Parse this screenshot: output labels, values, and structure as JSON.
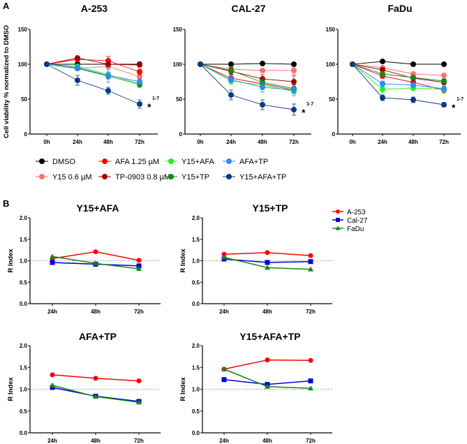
{
  "panel_labels": {
    "a": "A",
    "b": "B"
  },
  "colors": {
    "DMSO": "#000000",
    "AFA 1.25 µM": "#ff0000",
    "Y15+AFA": "#22ee22",
    "AFA+TP": "#2a8cff",
    "Y15 0.6 µM": "#ff7070",
    "TP-0903 0.8 µM": "#a00000",
    "Y15+TP": "#138a13",
    "Y15+AFA+TP": "#0c3a80",
    "A-253": "#ff0000",
    "Cal-27": "#0000dd",
    "FaDu": "#138a13"
  },
  "legend_a": [
    "DMSO",
    "AFA 1.25 µM",
    "Y15+AFA",
    "AFA+TP",
    "Y15 0.6 µM",
    "TP-0903 0.8 µM",
    "Y15+TP",
    "Y15+AFA+TP"
  ],
  "legend_b": [
    "A-253",
    "Cal-27",
    "FaDu"
  ],
  "chart_data": [
    {
      "type": "line",
      "title": "A-253",
      "xlabel": "",
      "ylabel": "Cell viability % normalized to DMSO",
      "categories": [
        "0h",
        "24h",
        "48h",
        "72h"
      ],
      "yticks": [
        "0",
        "50",
        "100",
        "150"
      ],
      "ylim": [
        0,
        150
      ],
      "annotation": {
        "text": "*",
        "superscript": "1-7"
      },
      "series": [
        {
          "name": "DMSO",
          "values": [
            100,
            100,
            100,
            100
          ],
          "err": [
            0,
            2,
            2,
            3
          ]
        },
        {
          "name": "Y15 0.6 µM",
          "values": [
            100,
            94,
            97,
            82
          ],
          "err": [
            0,
            3,
            5,
            4
          ]
        },
        {
          "name": "AFA 1.25 µM",
          "values": [
            100,
            107,
            105,
            89
          ],
          "err": [
            0,
            3,
            6,
            4
          ]
        },
        {
          "name": "TP-0903 0.8 µM",
          "values": [
            100,
            109,
            100,
            99
          ],
          "err": [
            0,
            2,
            3,
            3
          ]
        },
        {
          "name": "Y15+AFA",
          "values": [
            100,
            97,
            85,
            72
          ],
          "err": [
            0,
            3,
            4,
            4
          ]
        },
        {
          "name": "Y15+TP",
          "values": [
            100,
            94,
            83,
            71
          ],
          "err": [
            0,
            3,
            4,
            4
          ]
        },
        {
          "name": "AFA+TP",
          "values": [
            100,
            95,
            84,
            75
          ],
          "err": [
            0,
            4,
            10,
            4
          ]
        },
        {
          "name": "Y15+AFA+TP",
          "values": [
            100,
            77,
            62,
            43
          ],
          "err": [
            0,
            7,
            5,
            6
          ]
        }
      ]
    },
    {
      "type": "line",
      "title": "CAL-27",
      "xlabel": "",
      "ylabel": "",
      "categories": [
        "0h",
        "24h",
        "48h",
        "72h"
      ],
      "yticks": [
        "0",
        "50",
        "100",
        "150"
      ],
      "ylim": [
        0,
        150
      ],
      "annotation": {
        "text": "*",
        "superscript": "1-7"
      },
      "series": [
        {
          "name": "DMSO",
          "values": [
            100,
            100,
            101,
            100
          ],
          "err": [
            0,
            1,
            1,
            1
          ]
        },
        {
          "name": "Y15 0.6 µM",
          "values": [
            100,
            93,
            91,
            91
          ],
          "err": [
            0,
            3,
            3,
            5
          ]
        },
        {
          "name": "AFA 1.25 µM",
          "values": [
            100,
            80,
            72,
            63
          ],
          "err": [
            0,
            5,
            6,
            8
          ]
        },
        {
          "name": "TP-0903 0.8 µM",
          "values": [
            100,
            90,
            79,
            75
          ],
          "err": [
            0,
            5,
            6,
            9
          ]
        },
        {
          "name": "Y15+AFA",
          "values": [
            100,
            76,
            70,
            61
          ],
          "err": [
            0,
            5,
            6,
            6
          ]
        },
        {
          "name": "Y15+TP",
          "values": [
            100,
            91,
            74,
            65
          ],
          "err": [
            0,
            5,
            5,
            5
          ]
        },
        {
          "name": "AFA+TP",
          "values": [
            100,
            78,
            67,
            63
          ],
          "err": [
            0,
            5,
            7,
            5
          ]
        },
        {
          "name": "Y15+AFA+TP",
          "values": [
            100,
            56,
            42,
            35
          ],
          "err": [
            0,
            7,
            7,
            8
          ]
        }
      ]
    },
    {
      "type": "line",
      "title": "FaDu",
      "xlabel": "",
      "ylabel": "",
      "categories": [
        "0h",
        "24h",
        "48h",
        "72h"
      ],
      "yticks": [
        "0",
        "50",
        "100",
        "150"
      ],
      "ylim": [
        0,
        150
      ],
      "annotation": {
        "text": "*",
        "superscript": "1-7"
      },
      "series": [
        {
          "name": "DMSO",
          "values": [
            100,
            104,
            100,
            100
          ],
          "err": [
            0,
            1,
            1,
            1
          ]
        },
        {
          "name": "Y15 0.6 µM",
          "values": [
            100,
            95,
            86,
            84
          ],
          "err": [
            0,
            2,
            2,
            2
          ]
        },
        {
          "name": "AFA 1.25 µM",
          "values": [
            100,
            83,
            74,
            63
          ],
          "err": [
            0,
            3,
            3,
            4
          ]
        },
        {
          "name": "TP-0903 0.8 µM",
          "values": [
            100,
            92,
            80,
            74
          ],
          "err": [
            0,
            3,
            3,
            3
          ]
        },
        {
          "name": "Y15+AFA",
          "values": [
            100,
            64,
            66,
            64
          ],
          "err": [
            0,
            5,
            4,
            4
          ]
        },
        {
          "name": "Y15+TP",
          "values": [
            100,
            86,
            81,
            76
          ],
          "err": [
            0,
            3,
            3,
            3
          ]
        },
        {
          "name": "AFA+TP",
          "values": [
            100,
            72,
            70,
            65
          ],
          "err": [
            0,
            4,
            3,
            4
          ]
        },
        {
          "name": "Y15+AFA+TP",
          "values": [
            100,
            52,
            49,
            42
          ],
          "err": [
            0,
            4,
            4,
            3
          ]
        }
      ]
    },
    {
      "type": "line",
      "title": "Y15+AFA",
      "ylabel": "R Index",
      "categories": [
        "24h",
        "48h",
        "72h"
      ],
      "yticks": [
        "0.0",
        "0.5",
        "1.0",
        "1.5",
        "2.0"
      ],
      "ylim": [
        0,
        2
      ],
      "reference_line": 1.0,
      "series": [
        {
          "name": "A-253",
          "marker": "circle",
          "values": [
            1.05,
            1.21,
            1.01
          ]
        },
        {
          "name": "Cal-27",
          "marker": "square",
          "values": [
            0.96,
            0.92,
            0.88
          ]
        },
        {
          "name": "FaDu",
          "marker": "triangle",
          "values": [
            1.1,
            0.94,
            0.81
          ]
        }
      ]
    },
    {
      "type": "line",
      "title": "Y15+TP",
      "ylabel": "R Index",
      "categories": [
        "24h",
        "48h",
        "72h"
      ],
      "yticks": [
        "0.0",
        "0.5",
        "1.0",
        "1.5",
        "2.0"
      ],
      "ylim": [
        0,
        2
      ],
      "reference_line": 1.0,
      "series": [
        {
          "name": "A-253",
          "marker": "circle",
          "values": [
            1.15,
            1.19,
            1.12
          ]
        },
        {
          "name": "Cal-27",
          "marker": "square",
          "values": [
            1.04,
            0.96,
            0.98
          ]
        },
        {
          "name": "FaDu",
          "marker": "triangle",
          "values": [
            1.08,
            0.84,
            0.8
          ]
        }
      ]
    },
    {
      "type": "line",
      "title": "AFA+TP",
      "ylabel": "R Index",
      "categories": [
        "24h",
        "48h",
        "72h"
      ],
      "yticks": [
        "0.0",
        "0.5",
        "1.0",
        "1.5",
        "2.0"
      ],
      "ylim": [
        0,
        2
      ],
      "reference_line": 1.0,
      "series": [
        {
          "name": "A-253",
          "marker": "circle",
          "values": [
            1.33,
            1.25,
            1.19
          ]
        },
        {
          "name": "Cal-27",
          "marker": "square",
          "values": [
            1.04,
            0.84,
            0.72
          ]
        },
        {
          "name": "FaDu",
          "marker": "triangle",
          "values": [
            1.09,
            0.83,
            0.7
          ]
        }
      ]
    },
    {
      "type": "line",
      "title": "Y15+AFA+TP",
      "ylabel": "R Index",
      "categories": [
        "24h",
        "48h",
        "72h"
      ],
      "yticks": [
        "0.0",
        "0.5",
        "1.0",
        "1.5",
        "2.0"
      ],
      "ylim": [
        0,
        2
      ],
      "reference_line": 1.0,
      "series": [
        {
          "name": "A-253",
          "marker": "circle",
          "values": [
            1.46,
            1.67,
            1.66
          ]
        },
        {
          "name": "Cal-27",
          "marker": "square",
          "values": [
            1.22,
            1.11,
            1.19
          ]
        },
        {
          "name": "FaDu",
          "marker": "triangle",
          "values": [
            1.46,
            1.06,
            1.02
          ]
        }
      ]
    }
  ]
}
